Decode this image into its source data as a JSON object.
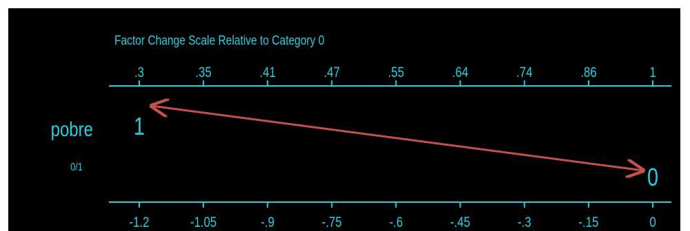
{
  "chart_data": {
    "type": "odds-ratio-plot",
    "title": "Factor Change Scale Relative to Category 0",
    "top_axis": {
      "ticks": [
        ".3",
        ".35",
        ".41",
        ".47",
        ".55",
        ".64",
        ".74",
        ".86",
        "1"
      ],
      "values": [
        -1.2,
        -1.05,
        -0.9,
        -0.75,
        -0.6,
        -0.45,
        -0.3,
        -0.15,
        0
      ]
    },
    "bottom_axis": {
      "ticks": [
        "-1.2",
        "-1.05",
        "-.9",
        "-.75",
        "-.6",
        "-.45",
        "-.3",
        "-.15",
        "0"
      ],
      "values": [
        -1.2,
        -1.05,
        -0.9,
        -0.75,
        -0.6,
        -0.45,
        -0.3,
        -0.15,
        0
      ],
      "xlim": [
        -1.2,
        0
      ]
    },
    "variable": {
      "name": "pobre",
      "sublabel": "0/1"
    },
    "markers": [
      {
        "label": "1",
        "x": -1.2,
        "row": "upper"
      },
      {
        "label": "0",
        "x": 0,
        "row": "lower"
      }
    ],
    "arrow": {
      "from": "0",
      "to": "1",
      "color": "#c8504a"
    },
    "colors": {
      "background": "#000000",
      "foreground": "#1ad3e0",
      "arrow": "#c8504a"
    }
  }
}
